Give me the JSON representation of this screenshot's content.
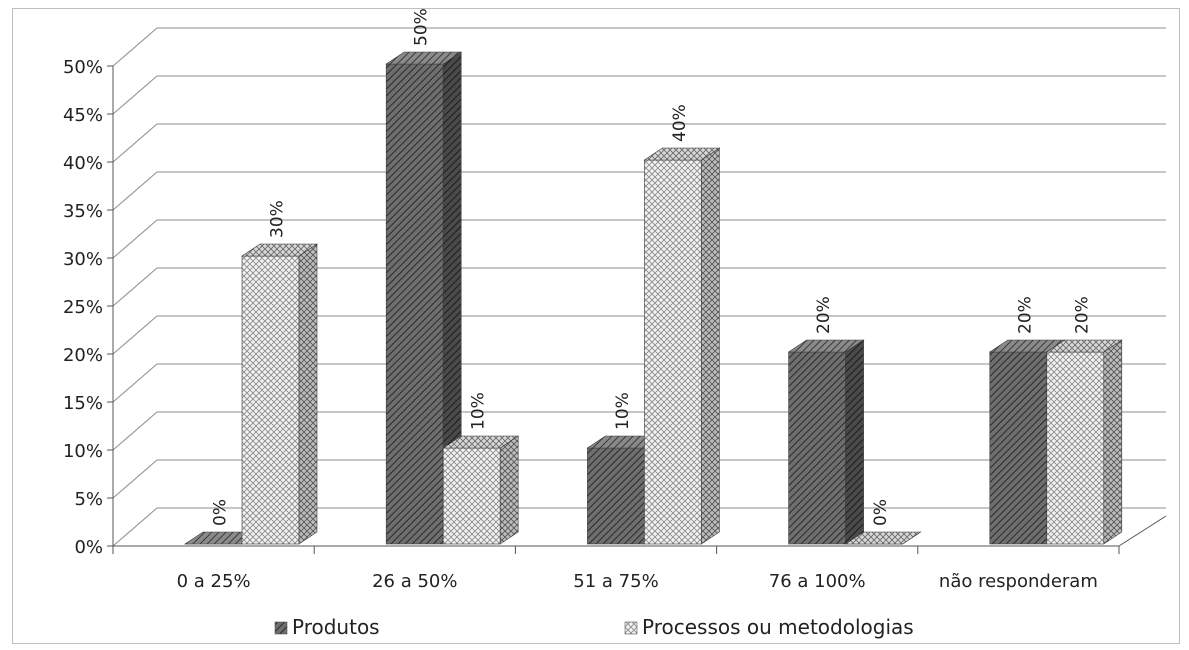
{
  "chart_data": {
    "type": "bar",
    "categories": [
      "0 a 25%",
      "26 a 50%",
      "51 a 75%",
      "76 a 100%",
      "não responderam"
    ],
    "series": [
      {
        "name": "Produtos",
        "values": [
          0,
          50,
          10,
          20,
          20
        ],
        "pattern": "dense-diagonal",
        "color": "#5a5a5a"
      },
      {
        "name": "Processos ou metodologias",
        "values": [
          30,
          10,
          40,
          0,
          20
        ],
        "pattern": "light-crosshatch",
        "color": "#cfcfcf"
      }
    ],
    "data_labels": [
      [
        "0%",
        "50%",
        "10%",
        "20%",
        "20%"
      ],
      [
        "30%",
        "10%",
        "40%",
        "0%",
        "20%"
      ]
    ],
    "y_ticks": [
      "0%",
      "5%",
      "10%",
      "15%",
      "20%",
      "25%",
      "30%",
      "35%",
      "40%",
      "45%",
      "50%"
    ],
    "ylim": [
      0,
      50
    ],
    "style": "3d-clustered-column",
    "grid": true,
    "legend_position": "bottom",
    "title": "",
    "xlabel": "",
    "ylabel": ""
  }
}
